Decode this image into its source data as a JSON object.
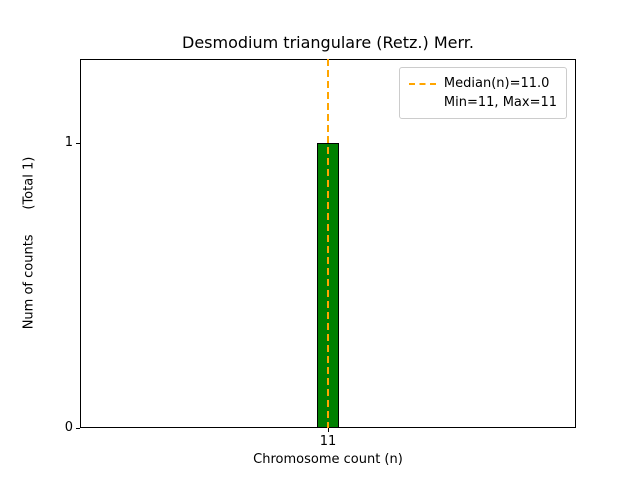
{
  "chart_data": {
    "type": "bar",
    "title": "Desmodium triangulare (Retz.) Merr.",
    "xlabel": "Chromosome count (n)",
    "ylabel": "Num of counts      (Total 1)",
    "x": [
      11
    ],
    "counts": [
      1
    ],
    "bar_width": 0.09,
    "xlim": [
      10,
      12
    ],
    "ylim": [
      0,
      1.295
    ],
    "xticks": [
      11
    ],
    "xtick_labels": [
      "11"
    ],
    "yticks": [
      0,
      1
    ],
    "ytick_labels": [
      "0",
      "1"
    ],
    "median": 11.0,
    "min": 11,
    "max": 11,
    "total": 1,
    "bar_color": "#008000",
    "bar_edge_color": "#000000",
    "median_line_color": "#FFA500",
    "legend": {
      "position": "upper right",
      "entries": [
        "Median(n)=11.0",
        "Min=11, Max=11"
      ]
    },
    "grid": false
  }
}
